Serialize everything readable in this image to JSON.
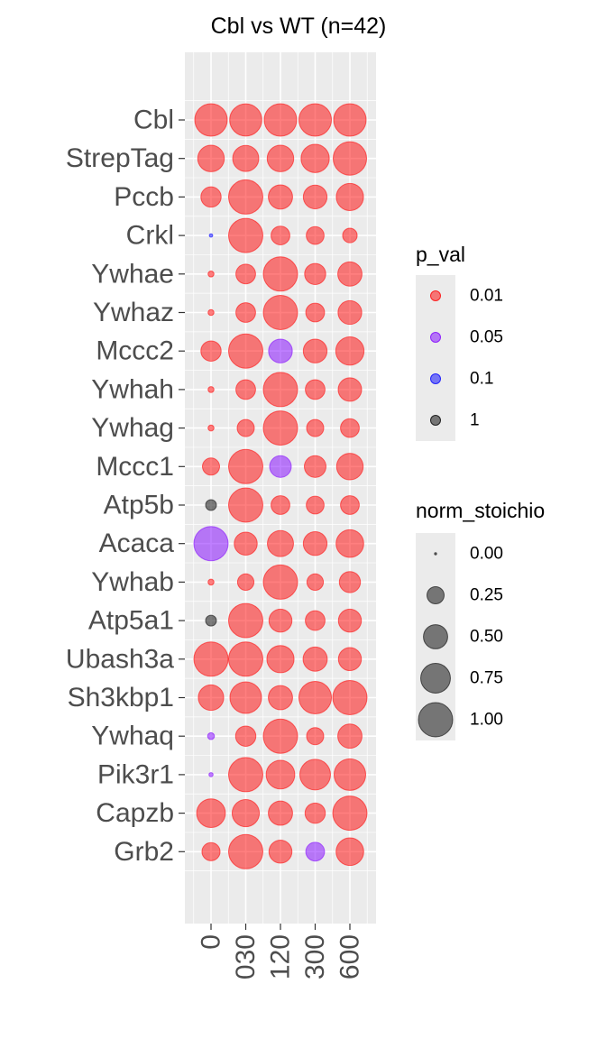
{
  "chart_data": {
    "type": "scatter",
    "title": "Cbl vs WT (n=42)",
    "xlabel": "",
    "ylabel": "",
    "x_categories": [
      "0",
      "030",
      "120",
      "300",
      "600"
    ],
    "y_categories": [
      "Cbl",
      "StrepTag",
      "Pccb",
      "Crkl",
      "Ywhae",
      "Ywhaz",
      "Mccc2",
      "Ywhah",
      "Ywhag",
      "Mccc1",
      "Atp5b",
      "Acaca",
      "Ywhab",
      "Atp5a1",
      "Ubash3a",
      "Sh3kbp1",
      "Ywhaq",
      "Pik3r1",
      "Capzb",
      "Grb2"
    ],
    "size_var": "norm_stoichio",
    "color_var": "p_val",
    "colors": {
      "0.01": "#ff0000",
      "0.05": "#8000ff",
      "0.1": "#0000ff",
      "1": "#000000"
    },
    "point_alpha": 0.5,
    "grid": true,
    "legend_position": "right",
    "points": [
      {
        "y": "Cbl",
        "x": "0",
        "size": 0.9,
        "p": "0.01"
      },
      {
        "y": "Cbl",
        "x": "030",
        "size": 0.88,
        "p": "0.01"
      },
      {
        "y": "Cbl",
        "x": "120",
        "size": 0.9,
        "p": "0.01"
      },
      {
        "y": "Cbl",
        "x": "300",
        "size": 0.9,
        "p": "0.01"
      },
      {
        "y": "Cbl",
        "x": "600",
        "size": 0.9,
        "p": "0.01"
      },
      {
        "y": "StrepTag",
        "x": "0",
        "size": 0.6,
        "p": "0.01"
      },
      {
        "y": "StrepTag",
        "x": "030",
        "size": 0.58,
        "p": "0.01"
      },
      {
        "y": "StrepTag",
        "x": "120",
        "size": 0.6,
        "p": "0.01"
      },
      {
        "y": "StrepTag",
        "x": "300",
        "size": 0.68,
        "p": "0.01"
      },
      {
        "y": "StrepTag",
        "x": "600",
        "size": 0.95,
        "p": "0.01"
      },
      {
        "y": "Pccb",
        "x": "0",
        "size": 0.35,
        "p": "0.01"
      },
      {
        "y": "Pccb",
        "x": "030",
        "size": 1.0,
        "p": "0.01"
      },
      {
        "y": "Pccb",
        "x": "120",
        "size": 0.5,
        "p": "0.01"
      },
      {
        "y": "Pccb",
        "x": "300",
        "size": 0.48,
        "p": "0.01"
      },
      {
        "y": "Pccb",
        "x": "600",
        "size": 0.63,
        "p": "0.01"
      },
      {
        "y": "Crkl",
        "x": "0",
        "size": 0.01,
        "p": "0.1"
      },
      {
        "y": "Crkl",
        "x": "030",
        "size": 1.0,
        "p": "0.01"
      },
      {
        "y": "Crkl",
        "x": "120",
        "size": 0.3,
        "p": "0.01"
      },
      {
        "y": "Crkl",
        "x": "300",
        "size": 0.27,
        "p": "0.01"
      },
      {
        "y": "Crkl",
        "x": "600",
        "size": 0.18,
        "p": "0.01"
      },
      {
        "y": "Ywhae",
        "x": "0",
        "size": 0.03,
        "p": "0.01"
      },
      {
        "y": "Ywhae",
        "x": "030",
        "size": 0.33,
        "p": "0.01"
      },
      {
        "y": "Ywhae",
        "x": "120",
        "size": 1.0,
        "p": "0.01"
      },
      {
        "y": "Ywhae",
        "x": "300",
        "size": 0.38,
        "p": "0.01"
      },
      {
        "y": "Ywhae",
        "x": "600",
        "size": 0.5,
        "p": "0.01"
      },
      {
        "y": "Ywhaz",
        "x": "0",
        "size": 0.03,
        "p": "0.01"
      },
      {
        "y": "Ywhaz",
        "x": "030",
        "size": 0.33,
        "p": "0.01"
      },
      {
        "y": "Ywhaz",
        "x": "120",
        "size": 1.0,
        "p": "0.01"
      },
      {
        "y": "Ywhaz",
        "x": "300",
        "size": 0.3,
        "p": "0.01"
      },
      {
        "y": "Ywhaz",
        "x": "600",
        "size": 0.48,
        "p": "0.01"
      },
      {
        "y": "Mccc2",
        "x": "0",
        "size": 0.35,
        "p": "0.01"
      },
      {
        "y": "Mccc2",
        "x": "030",
        "size": 1.0,
        "p": "0.01"
      },
      {
        "y": "Mccc2",
        "x": "120",
        "size": 0.48,
        "p": "0.05"
      },
      {
        "y": "Mccc2",
        "x": "300",
        "size": 0.48,
        "p": "0.01"
      },
      {
        "y": "Mccc2",
        "x": "600",
        "size": 0.68,
        "p": "0.01"
      },
      {
        "y": "Ywhah",
        "x": "0",
        "size": 0.03,
        "p": "0.01"
      },
      {
        "y": "Ywhah",
        "x": "030",
        "size": 0.33,
        "p": "0.01"
      },
      {
        "y": "Ywhah",
        "x": "120",
        "size": 1.0,
        "p": "0.01"
      },
      {
        "y": "Ywhah",
        "x": "300",
        "size": 0.33,
        "p": "0.01"
      },
      {
        "y": "Ywhah",
        "x": "600",
        "size": 0.47,
        "p": "0.01"
      },
      {
        "y": "Ywhag",
        "x": "0",
        "size": 0.03,
        "p": "0.01"
      },
      {
        "y": "Ywhag",
        "x": "030",
        "size": 0.25,
        "p": "0.01"
      },
      {
        "y": "Ywhag",
        "x": "120",
        "size": 1.0,
        "p": "0.01"
      },
      {
        "y": "Ywhag",
        "x": "300",
        "size": 0.25,
        "p": "0.01"
      },
      {
        "y": "Ywhag",
        "x": "600",
        "size": 0.3,
        "p": "0.01"
      },
      {
        "y": "Mccc1",
        "x": "0",
        "size": 0.25,
        "p": "0.01"
      },
      {
        "y": "Mccc1",
        "x": "030",
        "size": 1.0,
        "p": "0.01"
      },
      {
        "y": "Mccc1",
        "x": "120",
        "size": 0.4,
        "p": "0.05"
      },
      {
        "y": "Mccc1",
        "x": "300",
        "size": 0.4,
        "p": "0.01"
      },
      {
        "y": "Mccc1",
        "x": "600",
        "size": 0.6,
        "p": "0.01"
      },
      {
        "y": "Atp5b",
        "x": "0",
        "size": 0.1,
        "p": "1"
      },
      {
        "y": "Atp5b",
        "x": "030",
        "size": 1.0,
        "p": "0.01"
      },
      {
        "y": "Atp5b",
        "x": "120",
        "size": 0.3,
        "p": "0.01"
      },
      {
        "y": "Atp5b",
        "x": "300",
        "size": 0.27,
        "p": "0.01"
      },
      {
        "y": "Atp5b",
        "x": "600",
        "size": 0.3,
        "p": "0.01"
      },
      {
        "y": "Acaca",
        "x": "0",
        "size": 1.0,
        "p": "0.05"
      },
      {
        "y": "Acaca",
        "x": "030",
        "size": 0.45,
        "p": "0.01"
      },
      {
        "y": "Acaca",
        "x": "120",
        "size": 0.58,
        "p": "0.01"
      },
      {
        "y": "Acaca",
        "x": "300",
        "size": 0.48,
        "p": "0.01"
      },
      {
        "y": "Acaca",
        "x": "600",
        "size": 0.65,
        "p": "0.01"
      },
      {
        "y": "Ywhab",
        "x": "0",
        "size": 0.03,
        "p": "0.01"
      },
      {
        "y": "Ywhab",
        "x": "030",
        "size": 0.23,
        "p": "0.01"
      },
      {
        "y": "Ywhab",
        "x": "120",
        "size": 1.0,
        "p": "0.01"
      },
      {
        "y": "Ywhab",
        "x": "300",
        "size": 0.23,
        "p": "0.01"
      },
      {
        "y": "Ywhab",
        "x": "600",
        "size": 0.38,
        "p": "0.01"
      },
      {
        "y": "Atp5a1",
        "x": "0",
        "size": 0.1,
        "p": "1"
      },
      {
        "y": "Atp5a1",
        "x": "030",
        "size": 1.0,
        "p": "0.01"
      },
      {
        "y": "Atp5a1",
        "x": "120",
        "size": 0.45,
        "p": "0.01"
      },
      {
        "y": "Atp5a1",
        "x": "300",
        "size": 0.33,
        "p": "0.01"
      },
      {
        "y": "Atp5a1",
        "x": "600",
        "size": 0.45,
        "p": "0.01"
      },
      {
        "y": "Ubash3a",
        "x": "0",
        "size": 1.0,
        "p": "0.01"
      },
      {
        "y": "Ubash3a",
        "x": "030",
        "size": 1.0,
        "p": "0.01"
      },
      {
        "y": "Ubash3a",
        "x": "120",
        "size": 0.63,
        "p": "0.01"
      },
      {
        "y": "Ubash3a",
        "x": "300",
        "size": 0.5,
        "p": "0.01"
      },
      {
        "y": "Ubash3a",
        "x": "600",
        "size": 0.45,
        "p": "0.01"
      },
      {
        "y": "Sh3kbp1",
        "x": "0",
        "size": 0.55,
        "p": "0.01"
      },
      {
        "y": "Sh3kbp1",
        "x": "030",
        "size": 0.85,
        "p": "0.01"
      },
      {
        "y": "Sh3kbp1",
        "x": "120",
        "size": 0.5,
        "p": "0.01"
      },
      {
        "y": "Sh3kbp1",
        "x": "300",
        "size": 0.9,
        "p": "0.01"
      },
      {
        "y": "Sh3kbp1",
        "x": "600",
        "size": 1.0,
        "p": "0.01"
      },
      {
        "y": "Ywhaq",
        "x": "0",
        "size": 0.04,
        "p": "0.05"
      },
      {
        "y": "Ywhaq",
        "x": "030",
        "size": 0.35,
        "p": "0.01"
      },
      {
        "y": "Ywhaq",
        "x": "120",
        "size": 1.0,
        "p": "0.01"
      },
      {
        "y": "Ywhaq",
        "x": "300",
        "size": 0.25,
        "p": "0.01"
      },
      {
        "y": "Ywhaq",
        "x": "600",
        "size": 0.5,
        "p": "0.01"
      },
      {
        "y": "Pik3r1",
        "x": "0",
        "size": 0.015,
        "p": "0.05"
      },
      {
        "y": "Pik3r1",
        "x": "030",
        "size": 1.0,
        "p": "0.01"
      },
      {
        "y": "Pik3r1",
        "x": "120",
        "size": 0.7,
        "p": "0.01"
      },
      {
        "y": "Pik3r1",
        "x": "300",
        "size": 0.8,
        "p": "0.01"
      },
      {
        "y": "Pik3r1",
        "x": "600",
        "size": 0.85,
        "p": "0.01"
      },
      {
        "y": "Capzb",
        "x": "0",
        "size": 0.7,
        "p": "0.01"
      },
      {
        "y": "Capzb",
        "x": "030",
        "size": 0.63,
        "p": "0.01"
      },
      {
        "y": "Capzb",
        "x": "120",
        "size": 0.5,
        "p": "0.01"
      },
      {
        "y": "Capzb",
        "x": "300",
        "size": 0.35,
        "p": "0.01"
      },
      {
        "y": "Capzb",
        "x": "600",
        "size": 1.0,
        "p": "0.01"
      },
      {
        "y": "Grb2",
        "x": "0",
        "size": 0.28,
        "p": "0.01"
      },
      {
        "y": "Grb2",
        "x": "030",
        "size": 1.0,
        "p": "0.01"
      },
      {
        "y": "Grb2",
        "x": "120",
        "size": 0.45,
        "p": "0.01"
      },
      {
        "y": "Grb2",
        "x": "300",
        "size": 0.3,
        "p": "0.05"
      },
      {
        "y": "Grb2",
        "x": "600",
        "size": 0.65,
        "p": "0.01"
      }
    ],
    "legends": [
      {
        "title": "p_val",
        "type": "color",
        "entries": [
          "0.01",
          "0.05",
          "0.1",
          "1"
        ]
      },
      {
        "title": "norm_stoichio",
        "type": "size",
        "entries": [
          "0.00",
          "0.25",
          "0.50",
          "0.75",
          "1.00"
        ],
        "values": [
          0.0,
          0.25,
          0.5,
          0.75,
          1.0
        ]
      }
    ]
  }
}
